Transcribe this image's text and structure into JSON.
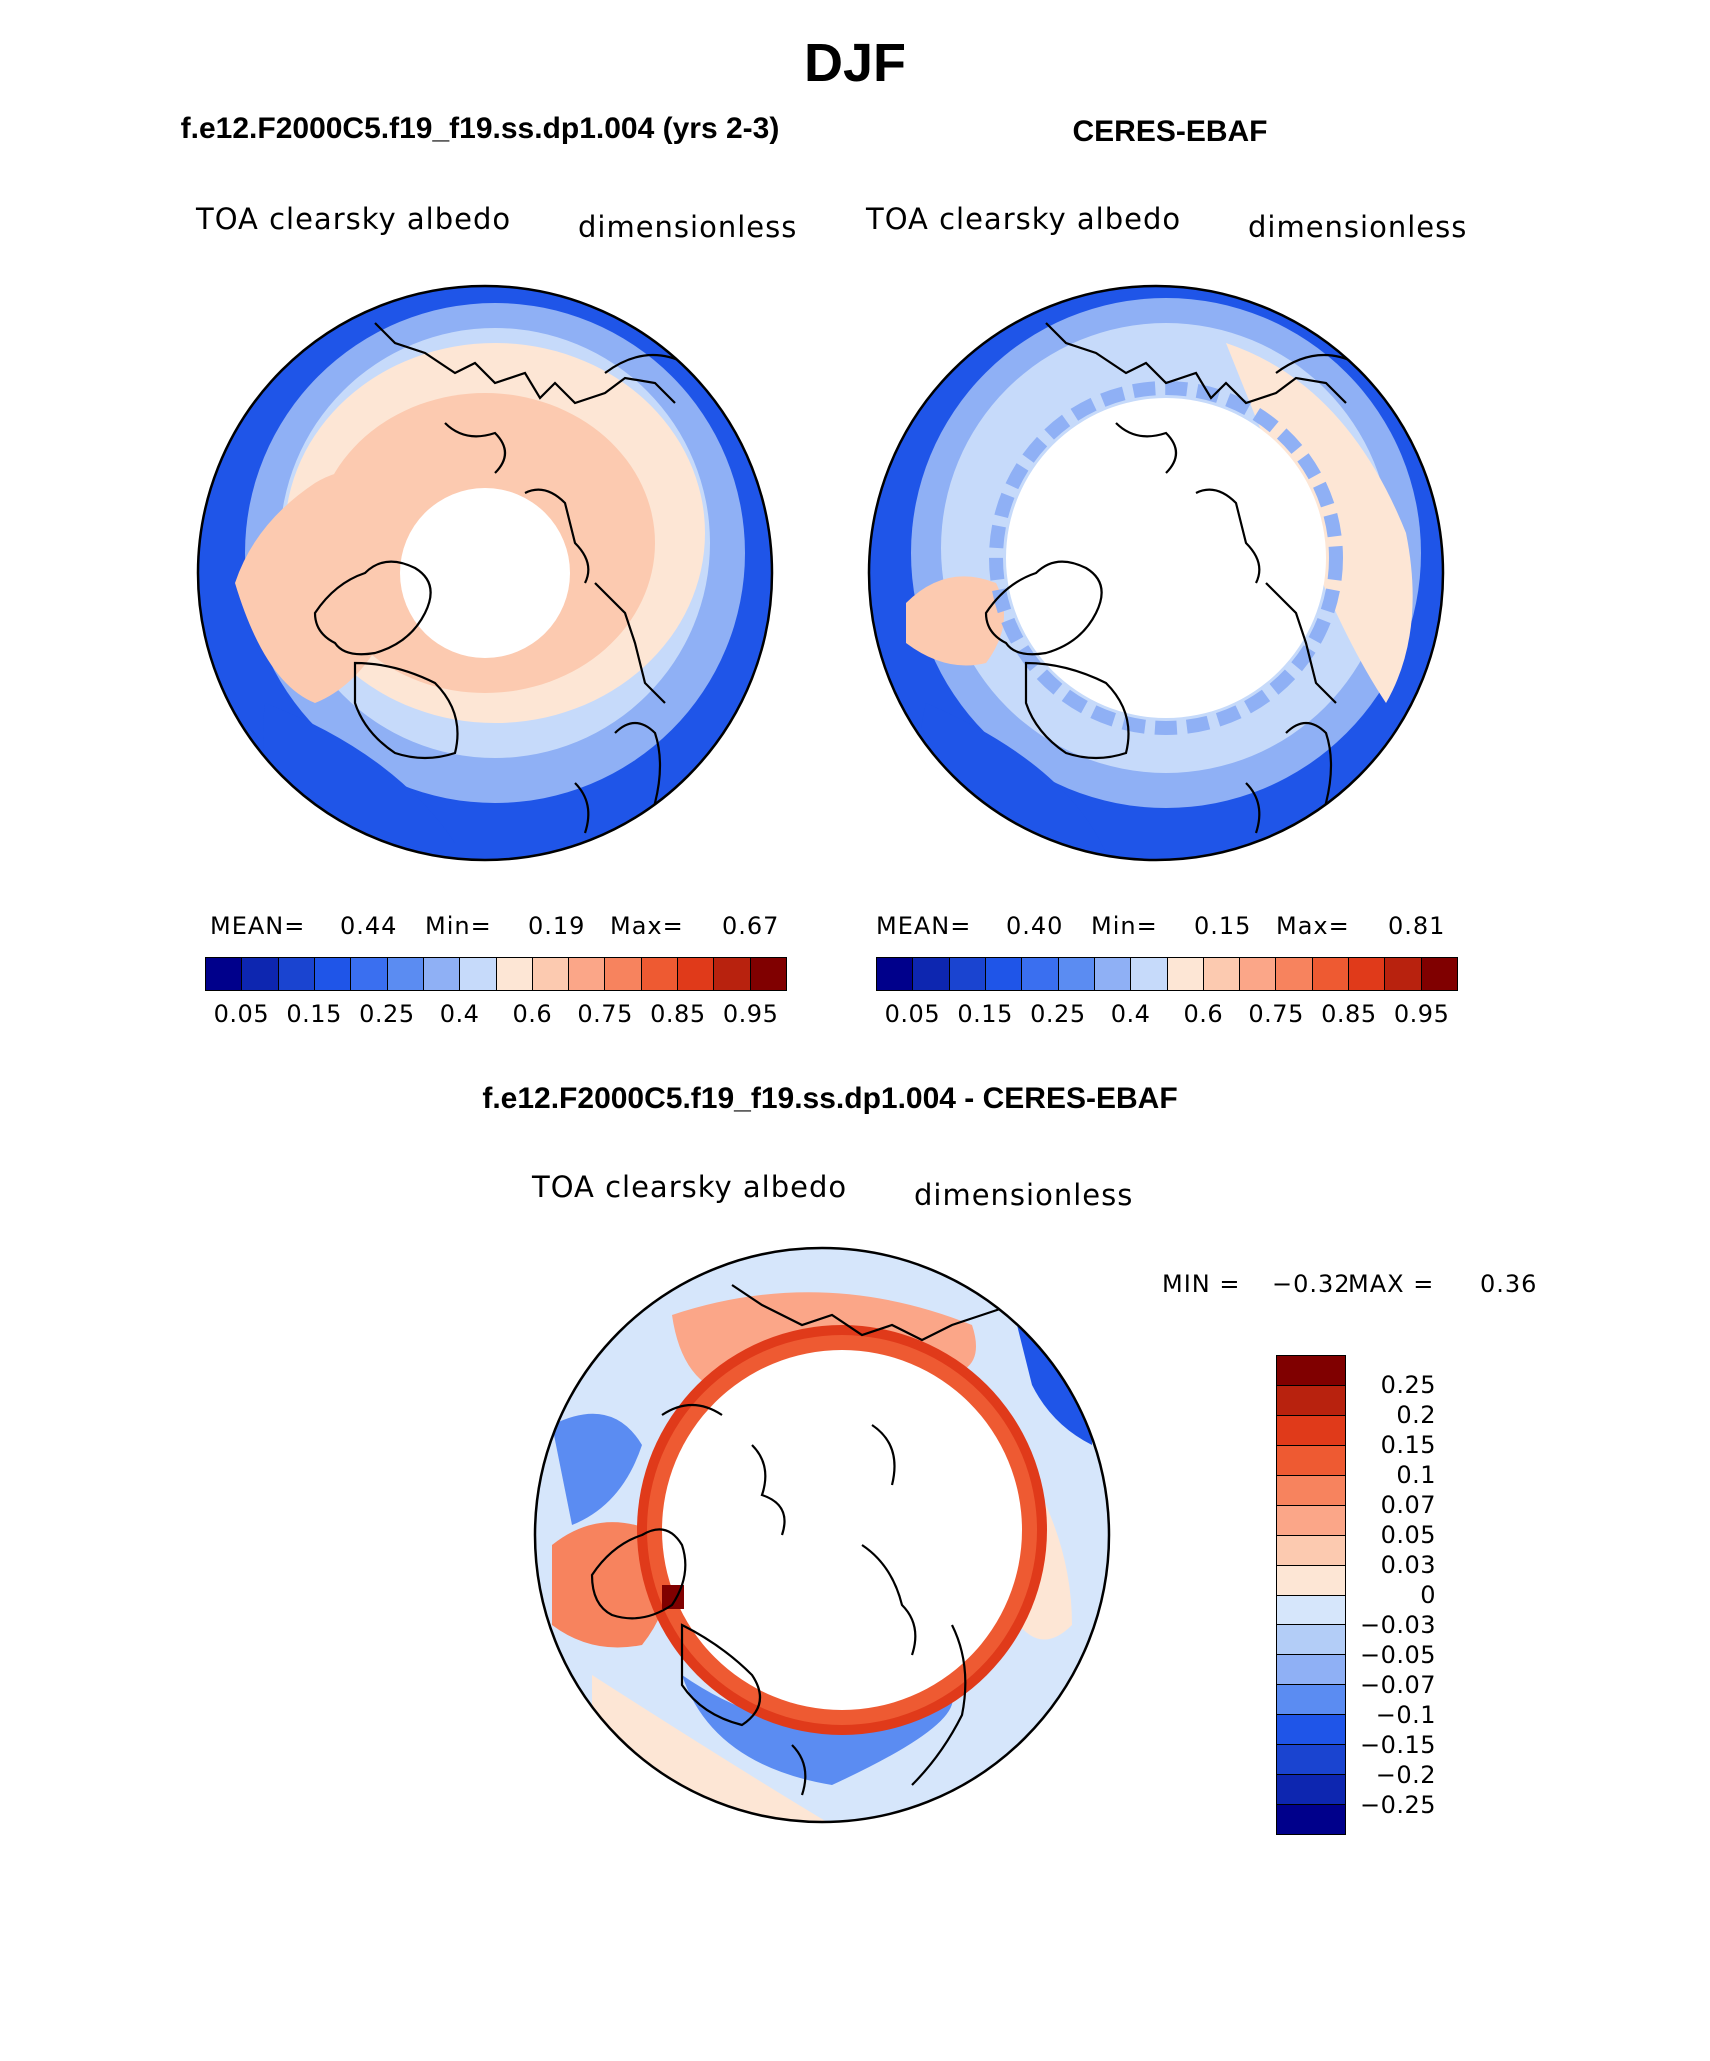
{
  "page": {
    "title": "DJF"
  },
  "panels": [
    {
      "heading": "f.e12.F2000C5.f19_f19.ss.dp1.004 (yrs 2-3)",
      "variable": "TOA clearsky albedo",
      "units": "dimensionless",
      "stats": {
        "mean_label": "MEAN=",
        "mean": "0.44",
        "min_label": "Min=",
        "min": "0.19",
        "max_label": "Max=",
        "max": "0.67"
      }
    },
    {
      "heading": "CERES-EBAF",
      "variable": "TOA clearsky albedo",
      "units": "dimensionless",
      "stats": {
        "mean_label": "MEAN=",
        "mean": "0.40",
        "min_label": "Min=",
        "min": "0.15",
        "max_label": "Max=",
        "max": "0.81"
      }
    }
  ],
  "abs_colorbar": {
    "colors": [
      "#00008b",
      "#0d26b0",
      "#1a44d0",
      "#1f55e8",
      "#3a6ff0",
      "#5b8cf2",
      "#8fb0f5",
      "#c6dafa",
      "#fde6d5",
      "#fccab0",
      "#fba688",
      "#f7835e",
      "#ee5a32",
      "#e03a1a",
      "#b8220e",
      "#800000"
    ],
    "tick_labels": [
      "0.05",
      "0.15",
      "0.25",
      "0.4",
      "0.6",
      "0.75",
      "0.85",
      "0.95"
    ]
  },
  "diff_panel": {
    "heading": "f.e12.F2000C5.f19_f19.ss.dp1.004 - CERES-EBAF",
    "variable": "TOA clearsky albedo",
    "units": "dimensionless",
    "stats": {
      "min_label": "MIN =",
      "min": "−0.32",
      "max_label": "MAX =",
      "max": "0.36"
    }
  },
  "diff_colorbar": {
    "colors_top_to_bottom": [
      "#800000",
      "#b8220e",
      "#e03a1a",
      "#ee5a32",
      "#f7835e",
      "#fba688",
      "#fccab0",
      "#fde6d5",
      "#d6e6fb",
      "#b3cdf7",
      "#8fb0f5",
      "#5b8cf2",
      "#1f55e8",
      "#1a44d0",
      "#0d26b0",
      "#00008b"
    ],
    "tick_labels": [
      "0.25",
      "0.2",
      "0.15",
      "0.1",
      "0.07",
      "0.05",
      "0.03",
      "0",
      "−0.03",
      "−0.05",
      "−0.07",
      "−0.1",
      "−0.15",
      "−0.2",
      "−0.25"
    ]
  },
  "map_colors": {
    "deep_blue": "#1f55e8",
    "mid_blue": "#5b8cf2",
    "light_blue": "#8fb0f5",
    "pale_blue": "#c6dafa",
    "pale_orange": "#fde6d5",
    "light_orange": "#fccab0",
    "orange": "#f7835e",
    "red_orange": "#e03a1a",
    "dark_red": "#b8220e",
    "polar_gap": "#ffffff"
  }
}
